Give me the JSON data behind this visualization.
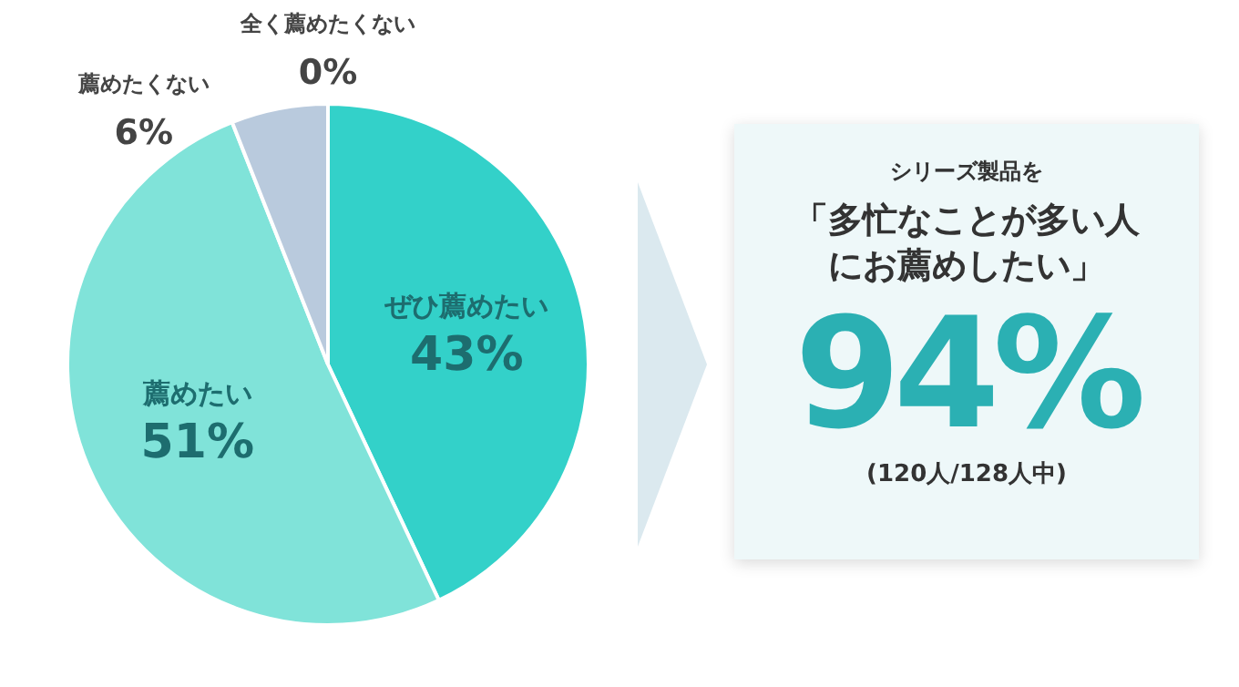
{
  "chart_data": [
    {
      "type": "pie",
      "categories": [
        "ぜひ薦めたい",
        "薦めたい",
        "薦めたくない",
        "全く薦めたくない"
      ],
      "values": [
        43,
        51,
        6,
        0
      ],
      "value_labels": [
        "43%",
        "51%",
        "6%",
        "0%"
      ],
      "colors": [
        "#33d1c9",
        "#80e3d9",
        "#b9cadd",
        "#9fb4cc"
      ]
    },
    {
      "type": "other",
      "annotations": [
        "シリーズ製品を",
        "「多忙なことが多い人にお薦めしたい」",
        "94%",
        "(120人/128人中)"
      ]
    }
  ]
}
